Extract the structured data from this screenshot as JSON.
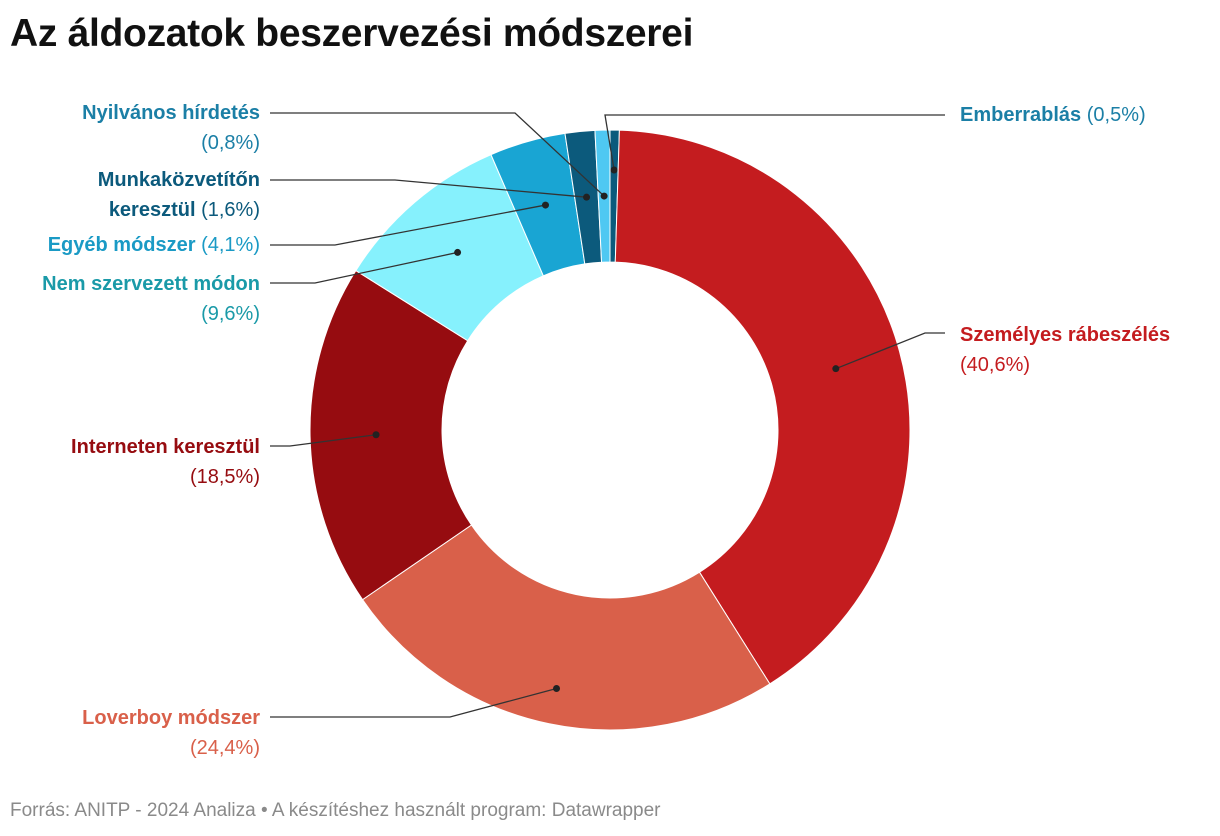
{
  "title": "Az áldozatok beszervezési módszerei",
  "source": "Forrás: ANITP - 2024 Analiza • A készítéshez használt program: Datawrapper",
  "chart_data": {
    "type": "pie",
    "variant": "donut",
    "title": "Az áldozatok beszervezési módszerei",
    "unit": "%",
    "slices": [
      {
        "name": "Emberrablás",
        "value": 0.5,
        "value_label": "(0,5%)",
        "color": "#0b5a7c"
      },
      {
        "name": "Személyes rábeszélés",
        "value": 40.6,
        "value_label": "(40,6%)",
        "color": "#c41c1f"
      },
      {
        "name": "Loverboy módszer",
        "value": 24.4,
        "value_label": "(24,4%)",
        "color": "#d9604a"
      },
      {
        "name": "Interneten keresztül",
        "value": 18.5,
        "value_label": "(18,5%)",
        "color": "#960c10"
      },
      {
        "name": "Nem szervezett módon",
        "value": 9.6,
        "value_label": "(9,6%)",
        "color": "#86f1fd"
      },
      {
        "name": "Egyéb módszer",
        "value": 4.1,
        "value_label": "(4,1%)",
        "color": "#19a5d3"
      },
      {
        "name": "Munkaközvetítőn keresztül",
        "value": 1.6,
        "value_label": "(1,6%)",
        "color": "#0c5a7c"
      },
      {
        "name": "Nyilvános hírdetés",
        "value": 0.8,
        "value_label": "(0,8%)",
        "color": "#4fc8f2"
      }
    ],
    "label_colors": {
      "Emberrablás": "#1b7fa6",
      "Személyes rábeszélés": "#c41c1f",
      "Loverboy módszer": "#d9604a",
      "Interneten keresztül": "#960c10",
      "Nem szervezett módon": "#1a9aa8",
      "Egyéb módszer": "#1a9ac5",
      "Munkaközvetítőn keresztül": "#0c5a7c",
      "Nyilvános hírdetés": "#1b7fa6"
    }
  }
}
